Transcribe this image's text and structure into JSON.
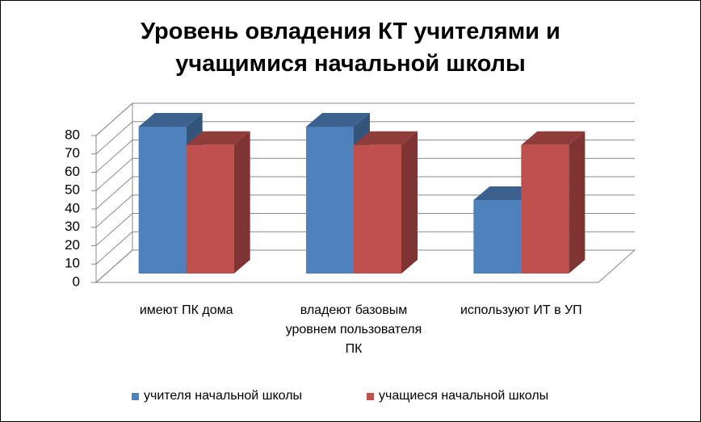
{
  "chart_data": {
    "type": "bar3d",
    "title": "Уровень овладения КТ учителями и учащимися начальной школы",
    "categories": [
      "имеют ПК дома",
      "владеют базовым уровнем пользователя ПК",
      "используют ИТ в УП"
    ],
    "series": [
      {
        "name": "учителя начальной школы",
        "color": "#4f81bd",
        "values": [
          80,
          80,
          40
        ]
      },
      {
        "name": "учащиеся начальной школы",
        "color": "#c0504d",
        "values": [
          70,
          70,
          70
        ]
      }
    ],
    "ylim": [
      0,
      80
    ],
    "yticks": [
      0,
      10,
      20,
      30,
      40,
      50,
      60,
      70,
      80
    ],
    "grid": true,
    "legend": "bottom"
  }
}
